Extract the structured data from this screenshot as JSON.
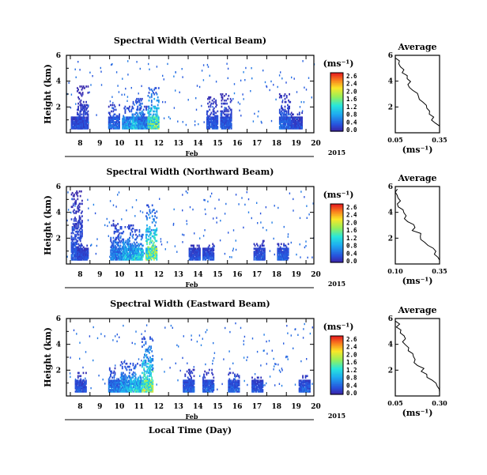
{
  "figure": {
    "xlabel": "Local Time (Day)",
    "month_label": "Feb",
    "year_label": "2015",
    "ylabel": "Height (km)",
    "colorbar_label": "(ms⁻¹)",
    "colorbar_ticks": [
      "2.6",
      "2.4",
      "2.0",
      "1.6",
      "1.2",
      "0.8",
      "0.4",
      "0.0"
    ],
    "profile_title": "Average",
    "profile_xlabel": "(ms⁻¹)"
  },
  "chart_data": [
    {
      "type": "heatmap",
      "title": "Spectral Width (Vertical Beam)",
      "x_ticks": [
        "8",
        "9",
        "10",
        "11",
        "12",
        "13",
        "14",
        "15",
        "16",
        "17",
        "18",
        "19",
        "20"
      ],
      "y_ticks": [
        "6",
        "4",
        "2"
      ],
      "xlim": [
        7.8,
        20.4
      ],
      "ylim": [
        0,
        6
      ],
      "zlim": [
        0,
        2.8
      ],
      "profile": {
        "title": "Average",
        "x_ticks": [
          "0.05",
          "0.35"
        ],
        "xlim": [
          0.05,
          0.35
        ],
        "y_ticks": [
          "6",
          "4",
          "2"
        ],
        "ylim": [
          0,
          6
        ],
        "values": [
          0.35,
          0.34,
          0.33,
          0.31,
          0.3,
          0.29,
          0.27,
          0.26,
          0.25,
          0.24,
          0.22,
          0.2,
          0.19,
          0.17,
          0.16,
          0.15,
          0.14,
          0.13,
          0.12,
          0.11,
          0.1,
          0.09,
          0.08,
          0.07,
          0.06
        ]
      },
      "activity": [
        {
          "day": 8.3,
          "top": 1.2,
          "peak": 0.45
        },
        {
          "day": 8.6,
          "top": 3.6,
          "peak": 0.4
        },
        {
          "day": 10.2,
          "top": 2.2,
          "peak": 0.7
        },
        {
          "day": 10.9,
          "top": 2.0,
          "peak": 1.1
        },
        {
          "day": 11.4,
          "top": 2.6,
          "peak": 1.3
        },
        {
          "day": 11.7,
          "top": 2.0,
          "peak": 0.9
        },
        {
          "day": 12.2,
          "top": 3.5,
          "peak": 1.8
        },
        {
          "day": 15.2,
          "top": 2.8,
          "peak": 0.5
        },
        {
          "day": 15.9,
          "top": 3.0,
          "peak": 0.5
        },
        {
          "day": 18.9,
          "top": 3.0,
          "peak": 0.6
        },
        {
          "day": 19.5,
          "top": 1.6,
          "peak": 0.4
        }
      ]
    },
    {
      "type": "heatmap",
      "title": "Spectral Width (Northward Beam)",
      "x_ticks": [
        "8",
        "9",
        "10",
        "11",
        "12",
        "13",
        "14",
        "15",
        "16",
        "17",
        "18",
        "19",
        "20"
      ],
      "y_ticks": [
        "6",
        "4",
        "2"
      ],
      "xlim": [
        7.8,
        20.4
      ],
      "ylim": [
        0,
        6
      ],
      "zlim": [
        0,
        2.8
      ],
      "profile": {
        "title": "Average",
        "x_ticks": [
          "0.10",
          "0.35"
        ],
        "xlim": [
          0.1,
          0.35
        ],
        "y_ticks": [
          "6",
          "4",
          "2"
        ],
        "ylim": [
          0,
          6
        ],
        "values": [
          0.35,
          0.34,
          0.33,
          0.32,
          0.3,
          0.28,
          0.27,
          0.25,
          0.24,
          0.23,
          0.21,
          0.2,
          0.19,
          0.17,
          0.16,
          0.15,
          0.14,
          0.13,
          0.13,
          0.12,
          0.12,
          0.11,
          0.11,
          0.1,
          0.1
        ]
      },
      "activity": [
        {
          "day": 8.3,
          "top": 5.6,
          "peak": 0.5
        },
        {
          "day": 8.6,
          "top": 1.5,
          "peak": 0.45
        },
        {
          "day": 10.3,
          "top": 3.4,
          "peak": 0.8
        },
        {
          "day": 10.9,
          "top": 3.0,
          "peak": 1.2
        },
        {
          "day": 11.4,
          "top": 2.6,
          "peak": 1.4
        },
        {
          "day": 12.1,
          "top": 4.6,
          "peak": 2.0
        },
        {
          "day": 14.3,
          "top": 1.4,
          "peak": 0.5
        },
        {
          "day": 15.0,
          "top": 1.6,
          "peak": 0.5
        },
        {
          "day": 17.6,
          "top": 1.8,
          "peak": 0.5
        },
        {
          "day": 18.8,
          "top": 1.6,
          "peak": 0.6
        }
      ]
    },
    {
      "type": "heatmap",
      "title": "Spectral Width (Eastward Beam)",
      "x_ticks": [
        "8",
        "9",
        "10",
        "11",
        "12",
        "13",
        "14",
        "15",
        "16",
        "17",
        "18",
        "19",
        "20"
      ],
      "y_ticks": [
        "6",
        "4",
        "2"
      ],
      "xlim": [
        7.8,
        20.4
      ],
      "ylim": [
        0,
        6
      ],
      "zlim": [
        0,
        2.8
      ],
      "profile": {
        "title": "Average",
        "x_ticks": [
          "0.05",
          "0.30"
        ],
        "xlim": [
          0.05,
          0.3
        ],
        "y_ticks": [
          "6",
          "4",
          "2"
        ],
        "ylim": [
          0,
          6
        ],
        "values": [
          0.3,
          0.29,
          0.28,
          0.27,
          0.26,
          0.24,
          0.23,
          0.21,
          0.2,
          0.19,
          0.17,
          0.16,
          0.15,
          0.14,
          0.13,
          0.12,
          0.11,
          0.1,
          0.1,
          0.09,
          0.08,
          0.08,
          0.07,
          0.06,
          0.06
        ]
      },
      "activity": [
        {
          "day": 8.5,
          "top": 1.8,
          "peak": 0.5
        },
        {
          "day": 10.2,
          "top": 2.2,
          "peak": 0.8
        },
        {
          "day": 10.8,
          "top": 2.6,
          "peak": 1.2
        },
        {
          "day": 11.3,
          "top": 2.5,
          "peak": 1.4
        },
        {
          "day": 11.9,
          "top": 4.6,
          "peak": 2.0
        },
        {
          "day": 14.0,
          "top": 2.0,
          "peak": 0.6
        },
        {
          "day": 15.0,
          "top": 2.0,
          "peak": 0.6
        },
        {
          "day": 16.3,
          "top": 1.8,
          "peak": 0.6
        },
        {
          "day": 17.5,
          "top": 1.4,
          "peak": 0.5
        },
        {
          "day": 19.9,
          "top": 1.6,
          "peak": 0.6
        }
      ]
    }
  ]
}
